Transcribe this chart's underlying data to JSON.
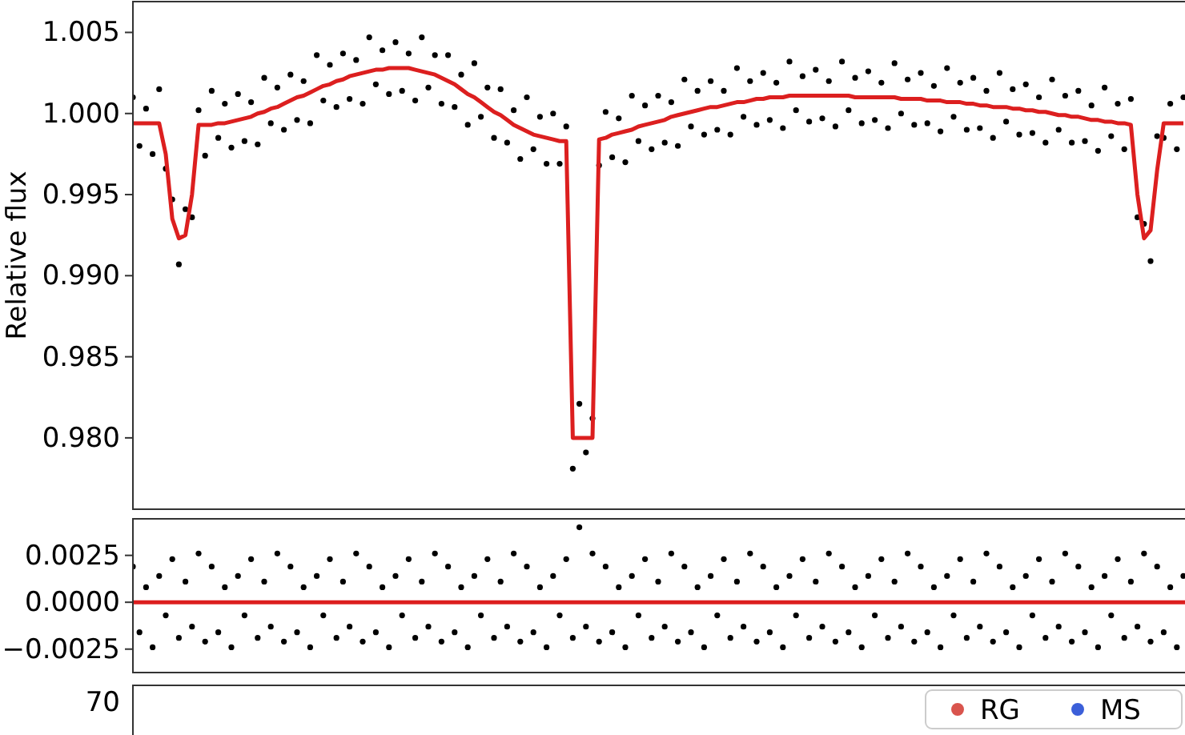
{
  "chart_data": [
    {
      "type": "scatter",
      "ylabel": "Relative flux",
      "tick_labels": "y",
      "categories": [
        null,
        null,
        null,
        null,
        null,
        null,
        null,
        null,
        null,
        null,
        null,
        null,
        null,
        null,
        null,
        null,
        null,
        null,
        null,
        null,
        null,
        null,
        null,
        null,
        null,
        null,
        null,
        null,
        null,
        null,
        null,
        null,
        null,
        null,
        null,
        null,
        null,
        null,
        null,
        null,
        null,
        null,
        null,
        null,
        null,
        null,
        null,
        null,
        null,
        null,
        null,
        null,
        null,
        null,
        null,
        null,
        null,
        null,
        null,
        null,
        null,
        null,
        null,
        null,
        null,
        null,
        null,
        null,
        null,
        null,
        null,
        null,
        null,
        null,
        null,
        null,
        null,
        null,
        null,
        null,
        null,
        null,
        null,
        null,
        null,
        null,
        null,
        null,
        null,
        null,
        null,
        null,
        null,
        null,
        null,
        null,
        null,
        null,
        null,
        null,
        null,
        null,
        null,
        null,
        null,
        null,
        null,
        null,
        null,
        null,
        null,
        null,
        null,
        null,
        null,
        null,
        null,
        null,
        null,
        null,
        null,
        null,
        null,
        null,
        null,
        null,
        null,
        null,
        null,
        null,
        null,
        null,
        null,
        null,
        null,
        null,
        null,
        null,
        null,
        null,
        null,
        null,
        null,
        null,
        null,
        null,
        null,
        null,
        null,
        null,
        null,
        null,
        null,
        null,
        null,
        null,
        null,
        null,
        null,
        null,
        null
      ],
      "ylim": [
        0.9756,
        1.0069
      ],
      "yticks": [
        {
          "value": 0.98,
          "label": "0.980"
        },
        {
          "value": 0.985,
          "label": "0.985"
        },
        {
          "value": 0.99,
          "label": "0.990"
        },
        {
          "value": 0.995,
          "label": "0.995"
        },
        {
          "value": 1,
          "label": "1.000"
        },
        {
          "value": 1.005,
          "label": "1.005"
        }
      ],
      "series": [
        {
          "color": "#000000",
          "values": [
            1.001,
            0.998,
            1.0003,
            0.9975,
            1.0015,
            0.9966,
            0.9947,
            0.9907,
            0.9941,
            0.9936,
            1.0002,
            0.9974,
            1.0014,
            0.9985,
            1.0006,
            0.9979,
            1.0012,
            0.9983,
            1.0007,
            0.9981,
            1.0022,
            0.9994,
            1.0016,
            0.999,
            1.0024,
            0.9996,
            1.002,
            0.9994,
            1.0036,
            1.0008,
            1.003,
            1.0004,
            1.0037,
            1.0009,
            1.0033,
            1.0006,
            1.0047,
            1.0018,
            1.0039,
            1.0012,
            1.0044,
            1.0014,
            1.0037,
            1.0008,
            1.0047,
            1.0016,
            1.0036,
            1.0006,
            1.0036,
            1.0004,
            1.0024,
            0.9993,
            1.0031,
            0.9998,
            1.0016,
            0.9985,
            1.0015,
            0.9982,
            1.0002,
            0.9972,
            1.001,
            0.9978,
            0.9998,
            0.9969,
            1.0,
            0.9969,
            0.9992,
            0.9781,
            0.9821,
            0.9791,
            0.9812,
            0.9968,
            1.0001,
            0.9973,
            0.9997,
            0.997,
            1.0011,
            0.9983,
            1.0005,
            0.9978,
            1.0011,
            0.9982,
            1.0007,
            0.998,
            1.0021,
            0.9992,
            1.0014,
            0.9987,
            1.002,
            0.999,
            1.0014,
            0.9987,
            1.0028,
            0.9998,
            1.002,
            0.9993,
            1.0025,
            0.9996,
            1.0019,
            0.9991,
            1.0032,
            1.0002,
            1.0023,
            0.9995,
            1.0027,
            0.9997,
            1.002,
            0.9992,
            1.0032,
            1.0002,
            1.0022,
            0.9994,
            1.0026,
            0.9996,
            1.0019,
            0.9991,
            1.0031,
            1.0,
            1.0021,
            0.9993,
            1.0025,
            0.9994,
            1.0017,
            0.9989,
            1.0028,
            0.9998,
            1.0019,
            0.999,
            1.0022,
            0.9991,
            1.0014,
            0.9985,
            1.0025,
            0.9995,
            1.0015,
            0.9987,
            1.0018,
            0.9988,
            1.001,
            0.9982,
            1.0021,
            0.999,
            1.0011,
            0.9982,
            1.0014,
            0.9983,
            1.0005,
            0.9977,
            1.0016,
            0.9986,
            1.0006,
            0.9978,
            1.0009,
            0.9936,
            0.9932,
            0.9909,
            0.9986,
            0.9985,
            1.0006,
            0.9978,
            1.001
          ]
        },
        {
          "type": "line",
          "color": "#dc1f1f",
          "values": [
            0.9994,
            0.9994,
            0.9994,
            0.9994,
            0.9994,
            0.9975,
            0.9935,
            0.9923,
            0.9925,
            0.995,
            0.9993,
            0.9993,
            0.9993,
            0.9994,
            0.9994,
            0.9995,
            0.9996,
            0.9997,
            0.9998,
            1.0,
            1.0001,
            1.0003,
            1.0004,
            1.0006,
            1.0008,
            1.001,
            1.0011,
            1.0013,
            1.0015,
            1.0017,
            1.0018,
            1.002,
            1.0021,
            1.0023,
            1.0024,
            1.0025,
            1.0026,
            1.0027,
            1.0027,
            1.0028,
            1.0028,
            1.0028,
            1.0028,
            1.0027,
            1.0026,
            1.0025,
            1.0024,
            1.0022,
            1.002,
            1.0018,
            1.0015,
            1.0012,
            1.001,
            1.0007,
            1.0004,
            1.0001,
            0.9999,
            0.9996,
            0.9993,
            0.9991,
            0.9989,
            0.9987,
            0.9986,
            0.9985,
            0.9984,
            0.9983,
            0.9983,
            0.98,
            0.98,
            0.98,
            0.98,
            0.9984,
            0.9985,
            0.9987,
            0.9988,
            0.9989,
            0.999,
            0.9992,
            0.9993,
            0.9994,
            0.9995,
            0.9996,
            0.9998,
            0.9999,
            1.0,
            1.0001,
            1.0002,
            1.0003,
            1.0004,
            1.0004,
            1.0005,
            1.0006,
            1.0007,
            1.0007,
            1.0008,
            1.0009,
            1.0009,
            1.001,
            1.001,
            1.001,
            1.0011,
            1.0011,
            1.0011,
            1.0011,
            1.0011,
            1.0011,
            1.0011,
            1.0011,
            1.0011,
            1.0011,
            1.001,
            1.001,
            1.001,
            1.001,
            1.001,
            1.001,
            1.001,
            1.0009,
            1.0009,
            1.0009,
            1.0009,
            1.0008,
            1.0008,
            1.0008,
            1.0007,
            1.0007,
            1.0007,
            1.0006,
            1.0006,
            1.0005,
            1.0005,
            1.0004,
            1.0004,
            1.0004,
            1.0003,
            1.0003,
            1.0002,
            1.0002,
            1.0001,
            1.0001,
            1.0,
            0.9999,
            0.9999,
            0.9998,
            0.9998,
            0.9997,
            0.9996,
            0.9996,
            0.9995,
            0.9995,
            0.9994,
            0.9994,
            0.9993,
            0.995,
            0.9923,
            0.9928,
            0.9965,
            0.9994,
            0.9994,
            0.9994,
            0.9994
          ]
        }
      ]
    },
    {
      "type": "scatter",
      "tick_labels": "y",
      "categories": [
        null,
        null,
        null,
        null,
        null,
        null,
        null,
        null,
        null,
        null,
        null,
        null,
        null,
        null,
        null,
        null,
        null,
        null,
        null,
        null,
        null,
        null,
        null,
        null,
        null,
        null,
        null,
        null,
        null,
        null,
        null,
        null,
        null,
        null,
        null,
        null,
        null,
        null,
        null,
        null,
        null,
        null,
        null,
        null,
        null,
        null,
        null,
        null,
        null,
        null,
        null,
        null,
        null,
        null,
        null,
        null,
        null,
        null,
        null,
        null,
        null,
        null,
        null,
        null,
        null,
        null,
        null,
        null,
        null,
        null,
        null,
        null,
        null,
        null,
        null,
        null,
        null,
        null,
        null,
        null,
        null,
        null,
        null,
        null,
        null,
        null,
        null,
        null,
        null,
        null,
        null,
        null,
        null,
        null,
        null,
        null,
        null,
        null,
        null,
        null,
        null,
        null,
        null,
        null,
        null,
        null,
        null,
        null,
        null,
        null,
        null,
        null,
        null,
        null,
        null,
        null,
        null,
        null,
        null,
        null,
        null,
        null,
        null,
        null,
        null,
        null,
        null,
        null,
        null,
        null,
        null,
        null,
        null,
        null,
        null,
        null,
        null,
        null,
        null,
        null,
        null,
        null,
        null,
        null,
        null,
        null,
        null,
        null,
        null,
        null,
        null,
        null,
        null,
        null,
        null,
        null,
        null,
        null,
        null,
        null,
        null
      ],
      "ylim": [
        -0.00375,
        0.00445
      ],
      "yticks": [
        {
          "value": -0.0025,
          "label": "−0.0025"
        },
        {
          "value": 0,
          "label": "0.0000"
        },
        {
          "value": 0.0025,
          "label": "0.0025"
        }
      ],
      "ref_lines": [
        {
          "axis": "y",
          "value": 0,
          "color": "#dc1f1f"
        }
      ],
      "series": [
        {
          "color": "#000000",
          "values": [
            0.0019,
            -0.0016,
            0.0008,
            -0.0024,
            0.0014,
            -0.0007,
            0.0023,
            -0.0019,
            0.0011,
            -0.0013,
            0.0026,
            -0.0021,
            0.0019,
            -0.0016,
            0.0008,
            -0.0024,
            0.0014,
            -0.0007,
            0.0023,
            -0.0019,
            0.0011,
            -0.0013,
            0.0026,
            -0.0021,
            0.0019,
            -0.0016,
            0.0008,
            -0.0024,
            0.0014,
            -0.0007,
            0.0023,
            -0.0019,
            0.0011,
            -0.0013,
            0.0026,
            -0.0021,
            0.0019,
            -0.0016,
            0.0008,
            -0.0024,
            0.0014,
            -0.0007,
            0.0023,
            -0.0019,
            0.0011,
            -0.0013,
            0.0026,
            -0.0021,
            0.0019,
            -0.0016,
            0.0008,
            -0.0024,
            0.0014,
            -0.0007,
            0.0023,
            -0.0019,
            0.0011,
            -0.0013,
            0.0026,
            -0.0021,
            0.0019,
            -0.0016,
            0.0008,
            -0.0024,
            0.0014,
            -0.0007,
            0.0023,
            -0.0019,
            0.004,
            -0.0013,
            0.0026,
            -0.0021,
            0.0019,
            -0.0016,
            0.0008,
            -0.0024,
            0.0014,
            -0.0007,
            0.0023,
            -0.0019,
            0.0011,
            -0.0013,
            0.0026,
            -0.0021,
            0.0019,
            -0.0016,
            0.0008,
            -0.0024,
            0.0014,
            -0.0007,
            0.0023,
            -0.0019,
            0.0011,
            -0.0013,
            0.0026,
            -0.0021,
            0.0019,
            -0.0016,
            0.0008,
            -0.0024,
            0.0014,
            -0.0007,
            0.0023,
            -0.0019,
            0.0011,
            -0.0013,
            0.0026,
            -0.0021,
            0.0019,
            -0.0016,
            0.0008,
            -0.0024,
            0.0014,
            -0.0007,
            0.0023,
            -0.0019,
            0.0011,
            -0.0013,
            0.0026,
            -0.0021,
            0.0019,
            -0.0016,
            0.0008,
            -0.0024,
            0.0014,
            -0.0007,
            0.0023,
            -0.0019,
            0.0011,
            -0.0013,
            0.0026,
            -0.0021,
            0.0019,
            -0.0016,
            0.0008,
            -0.0024,
            0.0014,
            -0.0007,
            0.0023,
            -0.0019,
            0.0011,
            -0.0013,
            0.0026,
            -0.0021,
            0.0019,
            -0.0016,
            0.0008,
            -0.0024,
            0.0014,
            -0.0007,
            0.0023,
            -0.0019,
            0.0011,
            -0.0013,
            0.0026,
            -0.0021,
            0.0019,
            -0.0016,
            0.0008,
            -0.0024,
            0.0014
          ]
        }
      ]
    },
    {
      "type": "other",
      "legend": "top right",
      "categories": [
        null,
        null,
        null,
        null,
        null,
        null,
        null,
        null,
        null,
        null,
        null,
        null,
        null,
        null,
        null,
        null,
        null,
        null,
        null,
        null,
        null,
        null,
        null,
        null,
        null,
        null,
        null,
        null,
        null,
        null,
        null,
        null,
        null,
        null,
        null,
        null,
        null,
        null,
        null,
        null,
        null,
        null,
        null,
        null,
        null,
        null,
        null,
        null,
        null,
        null,
        null,
        null,
        null,
        null,
        null,
        null,
        null,
        null,
        null,
        null,
        null,
        null,
        null,
        null,
        null,
        null,
        null,
        null,
        null,
        null,
        null,
        null,
        null,
        null,
        null,
        null,
        null,
        null,
        null,
        null,
        null,
        null,
        null,
        null,
        null,
        null,
        null,
        null,
        null,
        null,
        null,
        null,
        null,
        null,
        null,
        null,
        null,
        null,
        null,
        null,
        null,
        null,
        null,
        null,
        null,
        null,
        null,
        null,
        null,
        null,
        null,
        null,
        null,
        null,
        null,
        null,
        null,
        null,
        null,
        null,
        null,
        null,
        null,
        null,
        null,
        null,
        null,
        null,
        null,
        null,
        null,
        null,
        null,
        null,
        null,
        null,
        null,
        null,
        null,
        null,
        null,
        null,
        null,
        null,
        null,
        null,
        null,
        null,
        null,
        null,
        null,
        null,
        null,
        null,
        null,
        null,
        null,
        null,
        null,
        null,
        null
      ],
      "annotations": [
        "70"
      ],
      "series": [
        {
          "name": "RG",
          "color": "#d9544d",
          "values": [
            null,
            null,
            null,
            null,
            null,
            null,
            null,
            null,
            null,
            null,
            null,
            null,
            null,
            null,
            null,
            null,
            null,
            null,
            null,
            null,
            null,
            null,
            null,
            null,
            null,
            null,
            null,
            null,
            null,
            null,
            null,
            null,
            null,
            null,
            null,
            null,
            null,
            null,
            null,
            null,
            null,
            null,
            null,
            null,
            null,
            null,
            null,
            null,
            null,
            null,
            null,
            null,
            null,
            null,
            null,
            null,
            null,
            null,
            null,
            null,
            null,
            null,
            null,
            null,
            null,
            null,
            null,
            null,
            null,
            null,
            null,
            null,
            null,
            null,
            null,
            null,
            null,
            null,
            null,
            null,
            null,
            null,
            null,
            null,
            null,
            null,
            null,
            null,
            null,
            null,
            null,
            null,
            null,
            null,
            null,
            null,
            null,
            null,
            null,
            null,
            null,
            null,
            null,
            null,
            null,
            null,
            null,
            null,
            null,
            null,
            null,
            null,
            null,
            null,
            null,
            null,
            null,
            null,
            null,
            null,
            null,
            null,
            null,
            null,
            null,
            null,
            null,
            null,
            null,
            null,
            null,
            null,
            null,
            null,
            null,
            null,
            null,
            null,
            null,
            null,
            null,
            null,
            null,
            null,
            null,
            null,
            null,
            null,
            null,
            null,
            null,
            null,
            null,
            null,
            null,
            null,
            null,
            null,
            null,
            null,
            null
          ]
        },
        {
          "name": "MS",
          "color": "#3b5fd9",
          "values": [
            null,
            null,
            null,
            null,
            null,
            null,
            null,
            null,
            null,
            null,
            null,
            null,
            null,
            null,
            null,
            null,
            null,
            null,
            null,
            null,
            null,
            null,
            null,
            null,
            null,
            null,
            null,
            null,
            null,
            null,
            null,
            null,
            null,
            null,
            null,
            null,
            null,
            null,
            null,
            null,
            null,
            null,
            null,
            null,
            null,
            null,
            null,
            null,
            null,
            null,
            null,
            null,
            null,
            null,
            null,
            null,
            null,
            null,
            null,
            null,
            null,
            null,
            null,
            null,
            null,
            null,
            null,
            null,
            null,
            null,
            null,
            null,
            null,
            null,
            null,
            null,
            null,
            null,
            null,
            null,
            null,
            null,
            null,
            null,
            null,
            null,
            null,
            null,
            null,
            null,
            null,
            null,
            null,
            null,
            null,
            null,
            null,
            null,
            null,
            null,
            null,
            null,
            null,
            null,
            null,
            null,
            null,
            null,
            null,
            null,
            null,
            null,
            null,
            null,
            null,
            null,
            null,
            null,
            null,
            null,
            null,
            null,
            null,
            null,
            null,
            null,
            null,
            null,
            null,
            null,
            null,
            null,
            null,
            null,
            null,
            null,
            null,
            null,
            null,
            null,
            null,
            null,
            null,
            null,
            null,
            null,
            null,
            null,
            null,
            null,
            null,
            null,
            null,
            null,
            null,
            null,
            null,
            null,
            null,
            null,
            null
          ]
        }
      ]
    }
  ]
}
